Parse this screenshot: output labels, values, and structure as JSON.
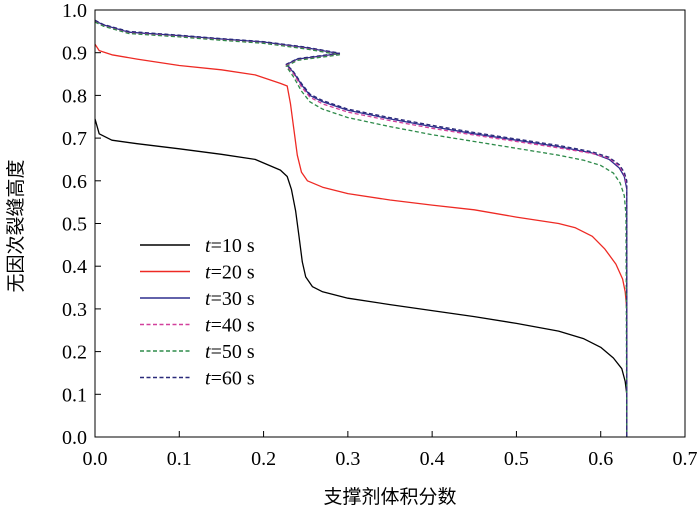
{
  "chart_data": {
    "type": "line",
    "title": "",
    "xlabel": "支撑剂体积分数",
    "ylabel": "无因次裂缝高度",
    "xlim": [
      0.0,
      0.7
    ],
    "ylim": [
      0.0,
      1.0
    ],
    "xticks": [
      "0.0",
      "0.1",
      "0.2",
      "0.3",
      "0.4",
      "0.5",
      "0.6",
      "0.7"
    ],
    "yticks": [
      "0.0",
      "0.1",
      "0.2",
      "0.3",
      "0.4",
      "0.5",
      "0.6",
      "0.7",
      "0.8",
      "0.9",
      "1.0"
    ],
    "grid": false,
    "legend_position": "lower-left",
    "series": [
      {
        "name": "t=10 s",
        "legend_var": "t",
        "legend_rest": "=10 s",
        "color": "#000000",
        "dash": "solid",
        "points": [
          [
            0.0,
            0.745
          ],
          [
            0.005,
            0.71
          ],
          [
            0.02,
            0.695
          ],
          [
            0.05,
            0.687
          ],
          [
            0.1,
            0.675
          ],
          [
            0.15,
            0.662
          ],
          [
            0.19,
            0.65
          ],
          [
            0.22,
            0.625
          ],
          [
            0.228,
            0.61
          ],
          [
            0.233,
            0.58
          ],
          [
            0.238,
            0.53
          ],
          [
            0.242,
            0.47
          ],
          [
            0.246,
            0.41
          ],
          [
            0.25,
            0.375
          ],
          [
            0.258,
            0.352
          ],
          [
            0.27,
            0.34
          ],
          [
            0.3,
            0.325
          ],
          [
            0.35,
            0.31
          ],
          [
            0.4,
            0.296
          ],
          [
            0.45,
            0.282
          ],
          [
            0.5,
            0.266
          ],
          [
            0.55,
            0.248
          ],
          [
            0.58,
            0.23
          ],
          [
            0.6,
            0.21
          ],
          [
            0.615,
            0.185
          ],
          [
            0.625,
            0.16
          ],
          [
            0.629,
            0.13
          ],
          [
            0.631,
            0.1
          ],
          [
            0.631,
            0.0
          ]
        ]
      },
      {
        "name": "t=20 s",
        "legend_var": "t",
        "legend_rest": "=20 s",
        "color": "#ee2a24",
        "dash": "solid",
        "points": [
          [
            0.0,
            0.92
          ],
          [
            0.005,
            0.905
          ],
          [
            0.02,
            0.895
          ],
          [
            0.05,
            0.885
          ],
          [
            0.1,
            0.87
          ],
          [
            0.15,
            0.86
          ],
          [
            0.19,
            0.848
          ],
          [
            0.22,
            0.828
          ],
          [
            0.228,
            0.822
          ],
          [
            0.232,
            0.78
          ],
          [
            0.236,
            0.72
          ],
          [
            0.24,
            0.66
          ],
          [
            0.245,
            0.62
          ],
          [
            0.252,
            0.6
          ],
          [
            0.27,
            0.585
          ],
          [
            0.3,
            0.57
          ],
          [
            0.35,
            0.555
          ],
          [
            0.4,
            0.543
          ],
          [
            0.45,
            0.532
          ],
          [
            0.5,
            0.515
          ],
          [
            0.55,
            0.5
          ],
          [
            0.57,
            0.49
          ],
          [
            0.59,
            0.47
          ],
          [
            0.605,
            0.44
          ],
          [
            0.618,
            0.405
          ],
          [
            0.626,
            0.37
          ],
          [
            0.629,
            0.34
          ],
          [
            0.631,
            0.3
          ],
          [
            0.631,
            0.0
          ]
        ]
      },
      {
        "name": "t=30 s",
        "legend_var": "t",
        "legend_rest": "=30 s",
        "color": "#2e2e8e",
        "dash": "solid",
        "points": [
          [
            0.0,
            0.975
          ],
          [
            0.01,
            0.965
          ],
          [
            0.04,
            0.948
          ],
          [
            0.1,
            0.94
          ],
          [
            0.15,
            0.932
          ],
          [
            0.2,
            0.925
          ],
          [
            0.25,
            0.912
          ],
          [
            0.29,
            0.898
          ],
          [
            0.24,
            0.885
          ],
          [
            0.227,
            0.872
          ],
          [
            0.235,
            0.855
          ],
          [
            0.245,
            0.825
          ],
          [
            0.255,
            0.8
          ],
          [
            0.27,
            0.785
          ],
          [
            0.3,
            0.765
          ],
          [
            0.35,
            0.745
          ],
          [
            0.4,
            0.727
          ],
          [
            0.45,
            0.71
          ],
          [
            0.5,
            0.695
          ],
          [
            0.55,
            0.68
          ],
          [
            0.59,
            0.665
          ],
          [
            0.61,
            0.65
          ],
          [
            0.622,
            0.63
          ],
          [
            0.628,
            0.61
          ],
          [
            0.631,
            0.58
          ],
          [
            0.631,
            0.0
          ]
        ]
      },
      {
        "name": "t=40 s",
        "legend_var": "t",
        "legend_rest": "=40 s",
        "color": "#d2409c",
        "dash": "dashed",
        "points": [
          [
            0.0,
            0.973
          ],
          [
            0.01,
            0.963
          ],
          [
            0.04,
            0.946
          ],
          [
            0.1,
            0.938
          ],
          [
            0.15,
            0.93
          ],
          [
            0.2,
            0.923
          ],
          [
            0.25,
            0.91
          ],
          [
            0.29,
            0.896
          ],
          [
            0.24,
            0.883
          ],
          [
            0.227,
            0.87
          ],
          [
            0.235,
            0.852
          ],
          [
            0.245,
            0.82
          ],
          [
            0.255,
            0.796
          ],
          [
            0.27,
            0.78
          ],
          [
            0.3,
            0.761
          ],
          [
            0.35,
            0.741
          ],
          [
            0.4,
            0.723
          ],
          [
            0.45,
            0.707
          ],
          [
            0.5,
            0.692
          ],
          [
            0.55,
            0.677
          ],
          [
            0.59,
            0.664
          ],
          [
            0.61,
            0.653
          ],
          [
            0.622,
            0.635
          ],
          [
            0.628,
            0.615
          ],
          [
            0.631,
            0.59
          ],
          [
            0.631,
            0.0
          ]
        ]
      },
      {
        "name": "t=50 s",
        "legend_var": "t",
        "legend_rest": "=50 s",
        "color": "#2e8b4a",
        "dash": "dashed",
        "points": [
          [
            0.0,
            0.972
          ],
          [
            0.01,
            0.962
          ],
          [
            0.04,
            0.945
          ],
          [
            0.1,
            0.937
          ],
          [
            0.15,
            0.929
          ],
          [
            0.2,
            0.922
          ],
          [
            0.25,
            0.909
          ],
          [
            0.29,
            0.895
          ],
          [
            0.24,
            0.882
          ],
          [
            0.227,
            0.868
          ],
          [
            0.235,
            0.845
          ],
          [
            0.245,
            0.81
          ],
          [
            0.255,
            0.785
          ],
          [
            0.27,
            0.768
          ],
          [
            0.3,
            0.748
          ],
          [
            0.35,
            0.727
          ],
          [
            0.4,
            0.708
          ],
          [
            0.45,
            0.692
          ],
          [
            0.5,
            0.676
          ],
          [
            0.55,
            0.66
          ],
          [
            0.58,
            0.648
          ],
          [
            0.6,
            0.636
          ],
          [
            0.615,
            0.618
          ],
          [
            0.623,
            0.595
          ],
          [
            0.628,
            0.565
          ],
          [
            0.63,
            0.52
          ],
          [
            0.631,
            0.0
          ]
        ]
      },
      {
        "name": "t=60 s",
        "legend_var": "t",
        "legend_rest": "=60 s",
        "color": "#2a2a7a",
        "dash": "dashed",
        "points": [
          [
            0.0,
            0.976
          ],
          [
            0.01,
            0.966
          ],
          [
            0.04,
            0.95
          ],
          [
            0.1,
            0.941
          ],
          [
            0.15,
            0.933
          ],
          [
            0.2,
            0.926
          ],
          [
            0.25,
            0.913
          ],
          [
            0.29,
            0.899
          ],
          [
            0.24,
            0.886
          ],
          [
            0.227,
            0.873
          ],
          [
            0.235,
            0.857
          ],
          [
            0.245,
            0.828
          ],
          [
            0.255,
            0.803
          ],
          [
            0.27,
            0.788
          ],
          [
            0.3,
            0.768
          ],
          [
            0.35,
            0.748
          ],
          [
            0.4,
            0.73
          ],
          [
            0.45,
            0.713
          ],
          [
            0.5,
            0.698
          ],
          [
            0.55,
            0.683
          ],
          [
            0.59,
            0.668
          ],
          [
            0.61,
            0.655
          ],
          [
            0.622,
            0.638
          ],
          [
            0.628,
            0.62
          ],
          [
            0.631,
            0.6
          ],
          [
            0.631,
            0.0
          ]
        ]
      }
    ]
  }
}
